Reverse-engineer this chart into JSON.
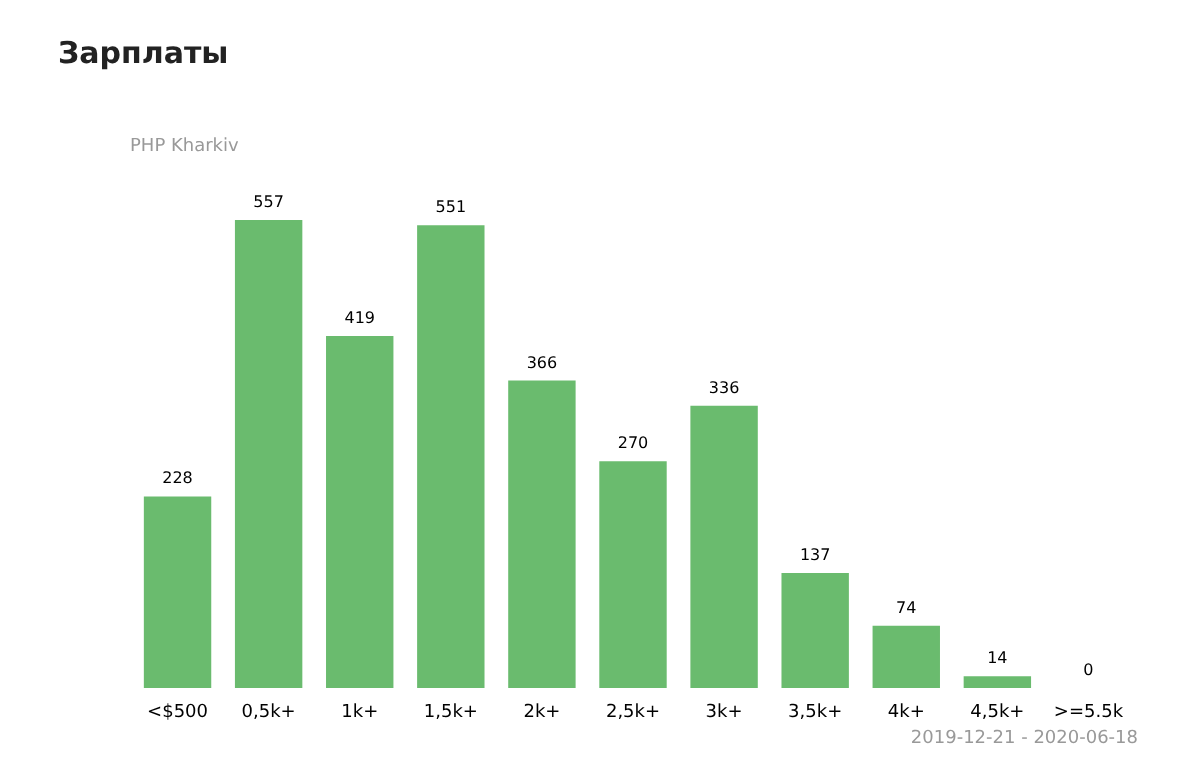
{
  "chart_data": {
    "type": "bar",
    "title": "Зарплаты",
    "subtitle": "PHP Kharkiv",
    "categories": [
      "<$500",
      "0,5k+",
      "1k+",
      "1,5k+",
      "2k+",
      "2,5k+",
      "3k+",
      "3,5k+",
      "4k+",
      "4,5k+",
      ">=5.5k"
    ],
    "values": [
      228,
      557,
      419,
      551,
      366,
      270,
      336,
      137,
      74,
      14,
      0
    ],
    "color": "#6abb6e",
    "data_labels": true,
    "tick_labels": "x",
    "annotations": [
      "2019-12-21 - 2020-06-18"
    ]
  }
}
